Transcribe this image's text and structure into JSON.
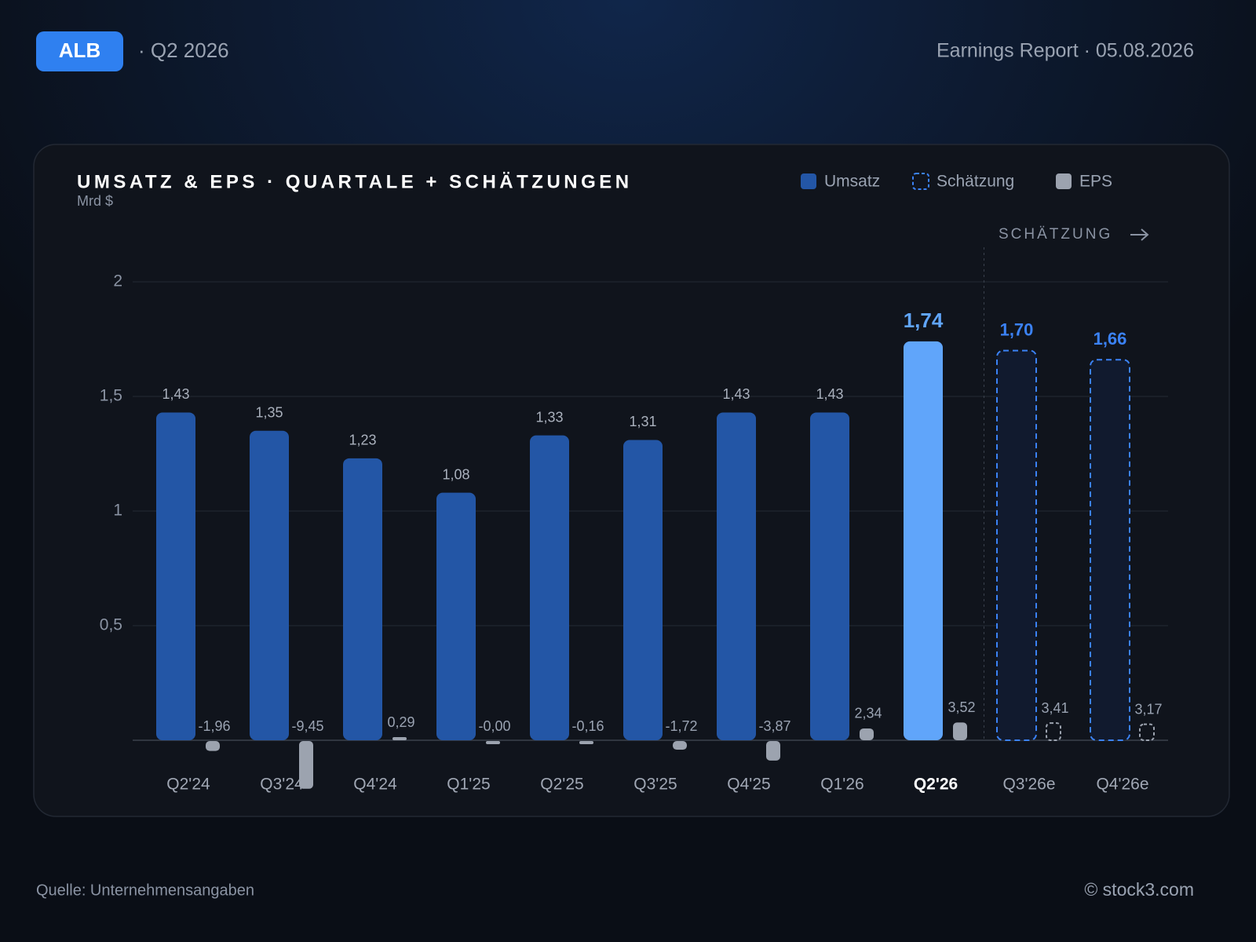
{
  "header": {
    "ticker": "ALB",
    "period": "· Q2 2026",
    "report": "Earnings Report · 05.08.2026"
  },
  "footer": {
    "source": "Quelle: Unternehmensangaben",
    "credit": "© stock3.com"
  },
  "chart_data": {
    "type": "bar",
    "title": "UMSATZ & EPS · QUARTALE + SCHÄTZUNGEN",
    "subtitle": "Mrd $",
    "annotation": "SCHÄTZUNG",
    "categories": [
      "Q2'24",
      "Q3'24",
      "Q4'24",
      "Q1'25",
      "Q2'25",
      "Q3'25",
      "Q4'25",
      "Q1'26",
      "Q2'26",
      "Q3'26e",
      "Q4'26e"
    ],
    "highlight": 8,
    "highlight_color": "#60a5fa",
    "series": [
      {
        "name": "Umsatz",
        "color": "#2356a6",
        "values": [
          1.43,
          1.35,
          1.23,
          1.08,
          1.33,
          1.31,
          1.43,
          1.43,
          1.74,
          null,
          null
        ],
        "value_labels": [
          "1,43",
          "1,35",
          "1,23",
          "1,08",
          "1,33",
          "1,31",
          "1,43",
          "1,43",
          "1,74",
          null,
          null
        ]
      },
      {
        "name": "Schätzung",
        "color": "#3b82f6",
        "values": [
          null,
          null,
          null,
          null,
          null,
          null,
          null,
          null,
          null,
          1.7,
          1.66
        ],
        "value_labels": [
          null,
          null,
          null,
          null,
          null,
          null,
          null,
          null,
          null,
          "1,70",
          "1,66"
        ]
      },
      {
        "name": "EPS",
        "color": "#9ca3af",
        "axis": "y2",
        "values": [
          -1.96,
          -9.45,
          0.29,
          -0.0,
          -0.16,
          -1.72,
          -3.87,
          2.34,
          3.52,
          3.41,
          3.17
        ],
        "value_labels": [
          "-1,96",
          "-9,45",
          "0,29",
          "-0,00",
          "-0,16",
          "-1,72",
          "-3,87",
          "2,34",
          "3,52",
          "3,41",
          "3,17"
        ]
      }
    ],
    "ylim": [
      0,
      2.2
    ],
    "yticks": [
      {
        "value": 0.5,
        "label": "0,5"
      },
      1,
      {
        "value": 1.5,
        "label": "1,5"
      },
      2
    ],
    "y2lim": [
      0,
      100
    ],
    "grid": true
  }
}
